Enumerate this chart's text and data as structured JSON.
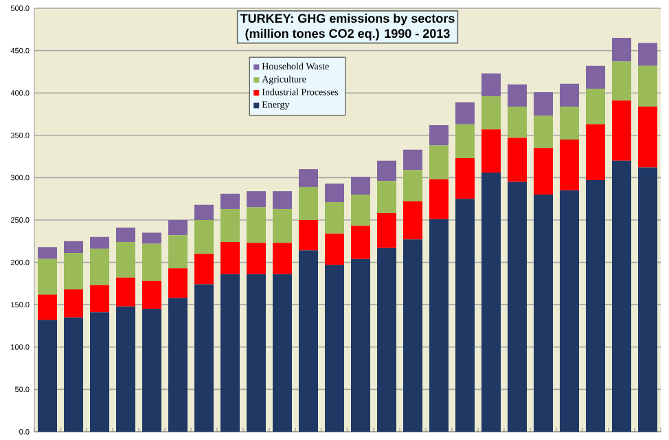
{
  "chart_data": {
    "type": "bar",
    "stacked": true,
    "title": "TURKEY: GHG emissions by sectors",
    "subtitle": "(million tones CO2 eq.) 1990 - 2013",
    "categories": [
      null,
      null,
      null,
      null,
      null,
      null,
      null,
      null,
      null,
      null,
      null,
      null,
      null,
      null,
      null,
      null,
      null,
      null,
      null,
      null,
      null,
      null,
      null,
      null
    ],
    "series": [
      {
        "name": "Energy",
        "color": "#1f3864",
        "values": [
          132,
          135,
          141,
          148,
          145,
          158,
          174,
          186,
          186,
          186,
          214,
          197,
          204,
          217,
          227,
          251,
          275,
          306,
          295,
          280,
          285,
          297,
          320,
          312
        ]
      },
      {
        "name": "Industrial Processes",
        "color": "#ff0000",
        "values": [
          30,
          33,
          32,
          34,
          33,
          35,
          36,
          38,
          37,
          37,
          36,
          37,
          39,
          41,
          45,
          47,
          48,
          51,
          52,
          55,
          60,
          66,
          71,
          72
        ]
      },
      {
        "name": "Agriculture",
        "color": "#9bbb59",
        "values": [
          42,
          43,
          43,
          42,
          44,
          39,
          40,
          39,
          42,
          40,
          39,
          37,
          37,
          38,
          37,
          40,
          40,
          39,
          37,
          38,
          39,
          42,
          46,
          48
        ]
      },
      {
        "name": "Household Waste",
        "color": "#8064a2",
        "values": [
          14,
          14,
          14,
          17,
          13,
          18,
          18,
          18,
          19,
          21,
          21,
          22,
          21,
          24,
          24,
          24,
          26,
          27,
          26,
          28,
          27,
          27,
          28,
          27
        ]
      }
    ],
    "ylim": [
      0,
      500
    ],
    "yticks": [
      {
        "value": 0,
        "label": "0.0"
      },
      {
        "value": 50,
        "label": "50.0"
      },
      {
        "value": 100,
        "label": "100.0"
      },
      {
        "value": 150,
        "label": "150.0"
      },
      {
        "value": 200,
        "label": "200.0"
      },
      {
        "value": 250,
        "label": "250.0"
      },
      {
        "value": 300,
        "label": "300.0"
      },
      {
        "value": 350,
        "label": "350.0"
      },
      {
        "value": 400,
        "label": "400.0"
      },
      {
        "value": 450,
        "label": "450.0"
      },
      {
        "value": 500,
        "label": "500.0"
      }
    ],
    "grid": "y",
    "legend": "top"
  }
}
